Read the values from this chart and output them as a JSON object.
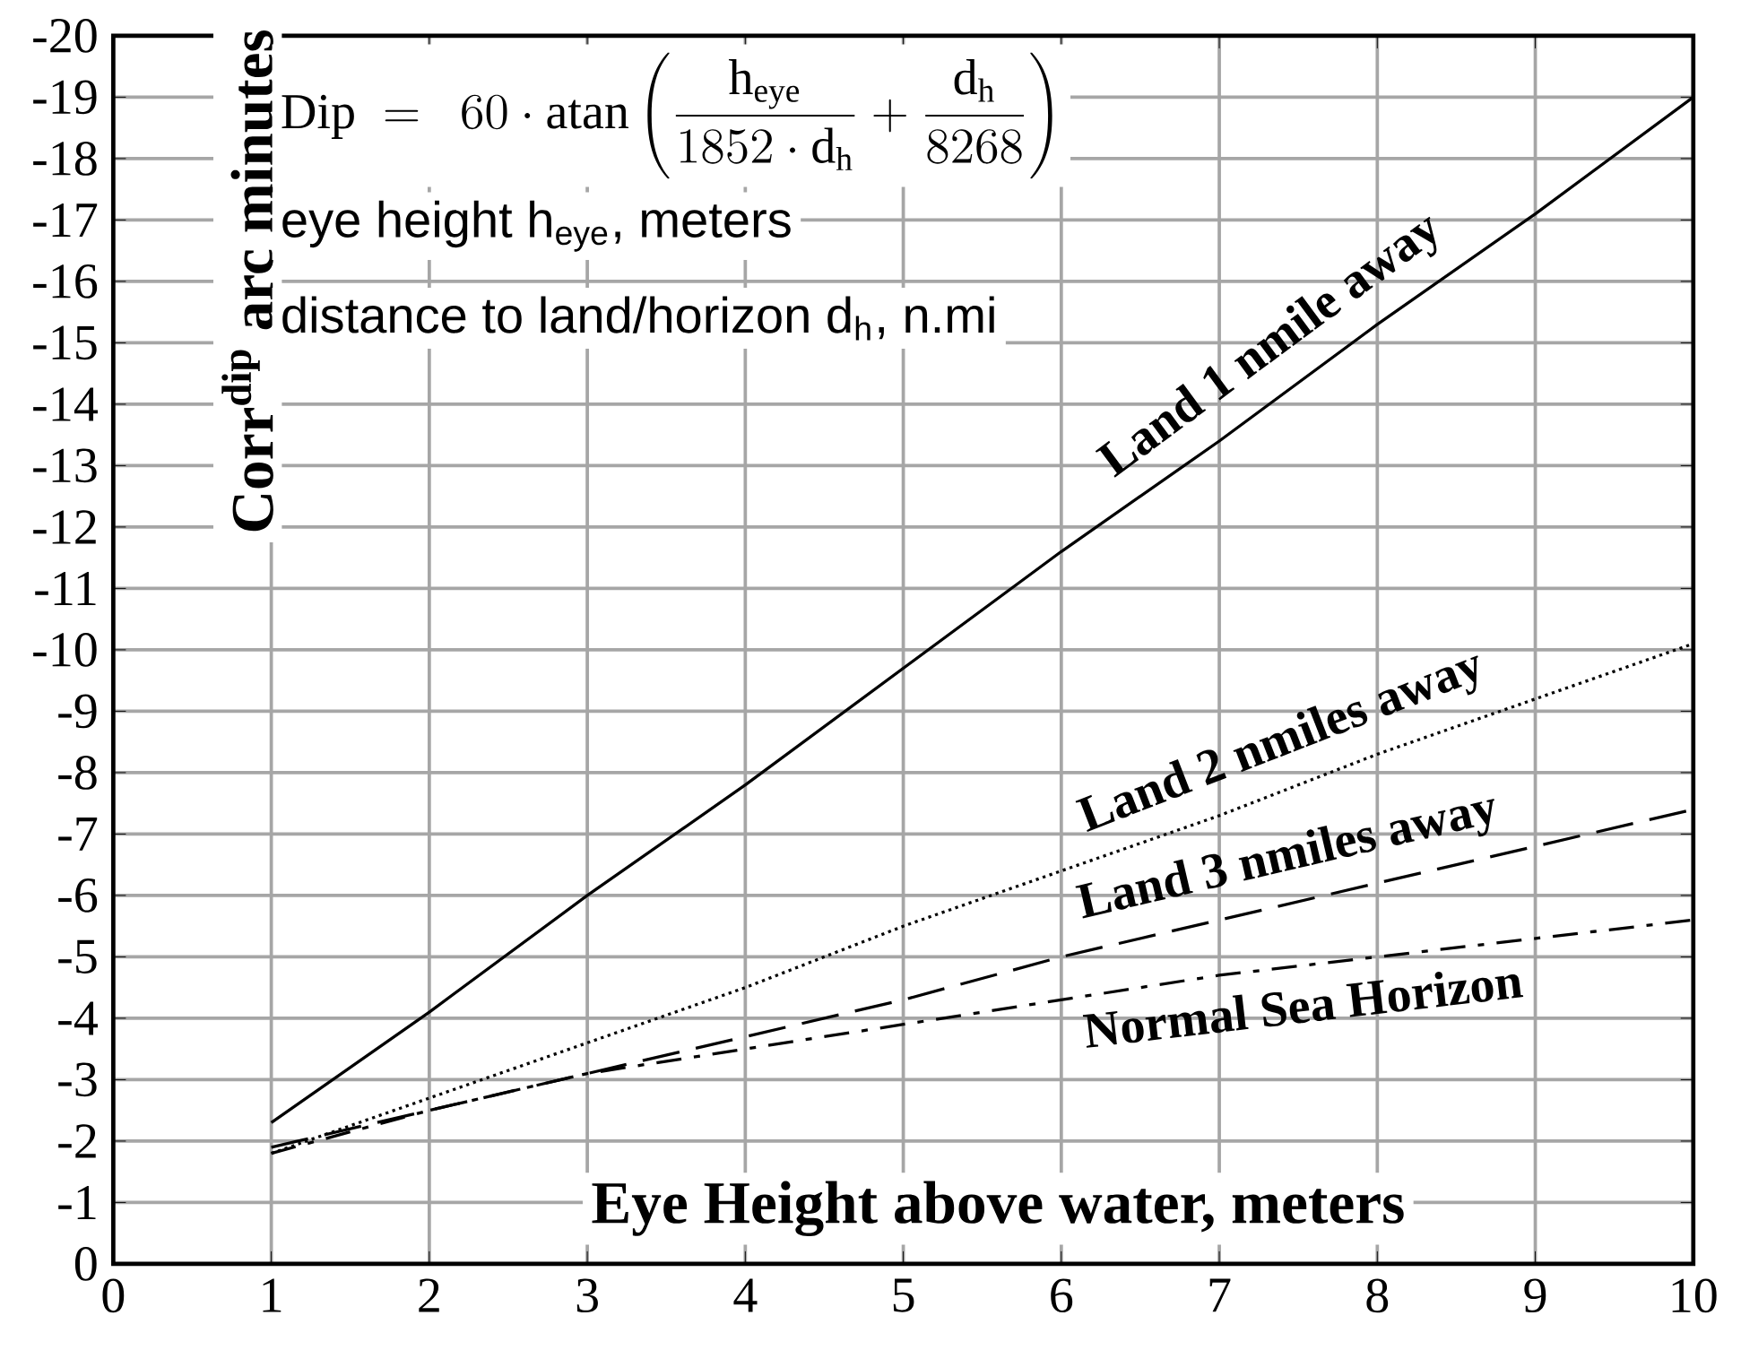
{
  "chart_data": {
    "type": "line",
    "xlabel": "Eye Height above water, meters",
    "ylabel": "Corr$^{dip}$ arc minutes",
    "x": [
      1,
      2,
      3,
      4,
      5,
      6,
      7,
      8,
      9,
      10
    ],
    "series": [
      {
        "name": "Land 1 nmile away",
        "color": "#000000",
        "line_style": "solid",
        "values": [
          -2.3,
          -4.1,
          -6.0,
          -7.8,
          -9.7,
          -11.6,
          -13.4,
          -15.3,
          -17.1,
          -19.0
        ]
      },
      {
        "name": "Land 2 nmiles away",
        "color": "#000000",
        "line_style": "dotted",
        "values": [
          -1.8,
          -2.7,
          -3.6,
          -4.5,
          -5.5,
          -6.4,
          -7.3,
          -8.3,
          -9.2,
          -10.1
        ]
      },
      {
        "name": "Land 3 nmiles away",
        "color": "#000000",
        "line_style": "dashed",
        "values": [
          -1.9,
          -2.5,
          -3.1,
          -3.7,
          -4.3,
          -5.0,
          -5.6,
          -6.2,
          -6.8,
          -7.4
        ]
      },
      {
        "name": "Normal Sea Horizon",
        "color": "#000000",
        "line_style": "dashdot",
        "values": [
          -1.8,
          -2.5,
          -3.1,
          -3.5,
          -3.9,
          -4.3,
          -4.7,
          -5.0,
          -5.3,
          -5.6
        ]
      }
    ],
    "xlim": [
      0,
      10
    ],
    "xticks": [
      0,
      1,
      2,
      3,
      4,
      5,
      6,
      7,
      8,
      9,
      10
    ],
    "ylim": [
      0,
      -20
    ],
    "yticks": [
      0,
      -1,
      -2,
      -3,
      -4,
      -5,
      -6,
      -7,
      -8,
      -9,
      -10,
      -11,
      -12,
      -13,
      -14,
      -15,
      -16,
      -17,
      -18,
      -19,
      -20
    ],
    "grid": true,
    "marker": "none",
    "annotations": [
      "\\mathrm{Dip}\\ =\\ \\ 60\\cdot\\mathrm{atan}\\left(\\frac{\\mathrm{h}_{\\mathrm{eye}}}{1852\\cdot \\mathrm{d}_{\\mathrm{h}}}+\\frac{\\mathrm{d}_{\\mathrm{h}}}{8268}\\right)",
      "eye height h$_{eye}$, meters",
      "distance to land/horizon d$_{h}$, n.mi"
    ]
  }
}
